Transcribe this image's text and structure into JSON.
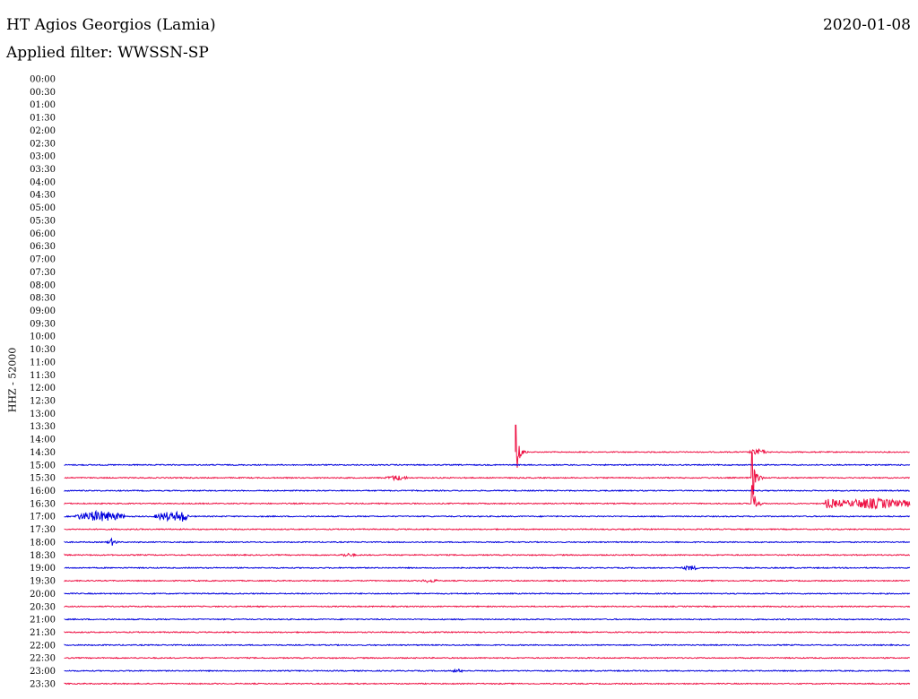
{
  "header": {
    "station": "HT Agios Georgios (Lamia)",
    "date": "2020-01-08",
    "filter": "Applied filter: WWSSN-SP"
  },
  "chart_data": {
    "type": "line",
    "title": "HT Agios Georgios (Lamia)",
    "subtitle": "Applied filter: WWSSN-SP",
    "ylabel": "HHZ - 52000",
    "colors": {
      "odd": "#0000dd",
      "even": "#ee1144"
    },
    "row_labels": [
      "00:00",
      "00:30",
      "01:00",
      "01:30",
      "02:00",
      "02:30",
      "03:00",
      "03:30",
      "04:00",
      "04:30",
      "05:00",
      "05:30",
      "06:00",
      "06:30",
      "07:00",
      "07:30",
      "08:00",
      "08:30",
      "09:00",
      "09:30",
      "10:00",
      "10:30",
      "11:00",
      "11:30",
      "12:00",
      "12:30",
      "13:00",
      "13:30",
      "14:00",
      "14:30",
      "15:00",
      "15:30",
      "16:00",
      "16:30",
      "17:00",
      "17:30",
      "18:00",
      "18:30",
      "19:00",
      "19:30",
      "20:00",
      "20:30",
      "21:00",
      "21:30",
      "22:00",
      "22:30",
      "23:00",
      "23:30"
    ],
    "minutes_per_row": 30,
    "trace_start_minute_of_row": 16,
    "trace_start_row": "14:30",
    "events": [
      {
        "row": "14:30",
        "minute": 16,
        "amplitude": 30,
        "duration_min": 0.2,
        "type": "spike"
      },
      {
        "row": "14:30",
        "minute": 24.4,
        "amplitude": 4,
        "duration_min": 0.4,
        "type": "burst"
      },
      {
        "row": "15:30",
        "minute": 11.5,
        "amplitude": 3,
        "duration_min": 0.6,
        "type": "burst"
      },
      {
        "row": "15:30",
        "minute": 24.4,
        "amplitude": 28,
        "duration_min": 0.6,
        "type": "spike"
      },
      {
        "row": "16:30",
        "minute": 24.4,
        "amplitude": 20,
        "duration_min": 0.2,
        "type": "spike"
      },
      {
        "row": "16:30",
        "minute": 27,
        "amplitude": 6,
        "duration_min": 3,
        "type": "noise"
      },
      {
        "row": "17:00",
        "minute": 0.5,
        "amplitude": 6,
        "duration_min": 1.5,
        "type": "burst"
      },
      {
        "row": "17:00",
        "minute": 3.3,
        "amplitude": 5,
        "duration_min": 0.6,
        "type": "burst"
      },
      {
        "row": "17:00",
        "minute": 3.9,
        "amplitude": 7,
        "duration_min": 0.4,
        "type": "burst"
      },
      {
        "row": "18:00",
        "minute": 1.6,
        "amplitude": 4,
        "duration_min": 0.2,
        "type": "burst"
      },
      {
        "row": "18:30",
        "minute": 9.8,
        "amplitude": 2,
        "duration_min": 0.5,
        "type": "burst"
      },
      {
        "row": "19:00",
        "minute": 22.0,
        "amplitude": 3,
        "duration_min": 0.4,
        "type": "burst"
      },
      {
        "row": "19:30",
        "minute": 12.7,
        "amplitude": 2,
        "duration_min": 0.5,
        "type": "burst"
      },
      {
        "row": "23:00",
        "minute": 13.8,
        "amplitude": 2,
        "duration_min": 0.3,
        "type": "burst"
      }
    ]
  }
}
